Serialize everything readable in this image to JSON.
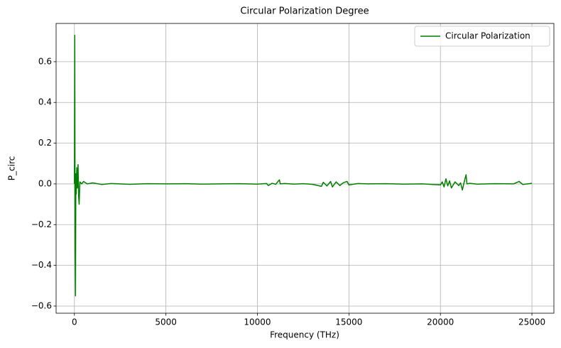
{
  "chart_data": {
    "type": "line",
    "title": "Circular Polarization Degree",
    "xlabel": "Frequency (THz)",
    "ylabel": "P_circ",
    "x": [
      0,
      20,
      40,
      60,
      80,
      100,
      130,
      160,
      200,
      230,
      260,
      300,
      400,
      500,
      700,
      1000,
      1500,
      2000,
      3000,
      4000,
      5000,
      6000,
      7000,
      8000,
      9000,
      10000,
      10500,
      10600,
      10800,
      11000,
      11200,
      11250,
      11500,
      12000,
      12500,
      13000,
      13500,
      13600,
      13800,
      14000,
      14100,
      14300,
      14500,
      14700,
      14900,
      15000,
      15500,
      16000,
      17000,
      18000,
      19000,
      20000,
      20100,
      20200,
      20300,
      20400,
      20500,
      20600,
      20800,
      21000,
      21100,
      21200,
      21300,
      21400,
      21450,
      21600,
      22000,
      23000,
      24000,
      24300,
      24500,
      25000
    ],
    "series": [
      {
        "name": "Circular Polarization",
        "color": "#008000",
        "values": [
          0.0,
          0.73,
          -0.33,
          -0.55,
          0.05,
          -0.05,
          0.08,
          -0.02,
          0.095,
          -0.06,
          -0.1,
          0.01,
          0.0,
          0.012,
          0.0,
          0.005,
          -0.003,
          0.002,
          -0.002,
          0.001,
          0.0,
          0.001,
          -0.001,
          0.0,
          0.001,
          -0.001,
          0.002,
          -0.008,
          0.003,
          -0.002,
          0.02,
          0.0,
          0.002,
          -0.001,
          0.001,
          -0.002,
          -0.012,
          0.008,
          -0.01,
          0.012,
          -0.015,
          0.01,
          -0.008,
          0.006,
          0.012,
          -0.005,
          0.002,
          0.0,
          0.001,
          -0.001,
          0.0,
          -0.005,
          0.01,
          -0.015,
          0.025,
          -0.01,
          0.015,
          -0.02,
          0.01,
          -0.008,
          0.005,
          -0.03,
          0.01,
          0.045,
          0.0,
          0.003,
          -0.001,
          0.001,
          0.0,
          0.012,
          -0.003,
          0.003
        ]
      }
    ],
    "xlim": [
      -1000,
      26200
    ],
    "xticks": [
      0,
      5000,
      10000,
      15000,
      20000,
      25000
    ],
    "ylim": [
      -0.635,
      0.788
    ],
    "yticks": [
      {
        "value": -0.6,
        "label": "−0.6"
      },
      {
        "value": -0.4,
        "label": "−0.4"
      },
      {
        "value": -0.2,
        "label": "−0.2"
      },
      {
        "value": 0,
        "label": "0.0"
      },
      0.2,
      0.4,
      0.6
    ],
    "grid": true,
    "legend": "upper right"
  }
}
